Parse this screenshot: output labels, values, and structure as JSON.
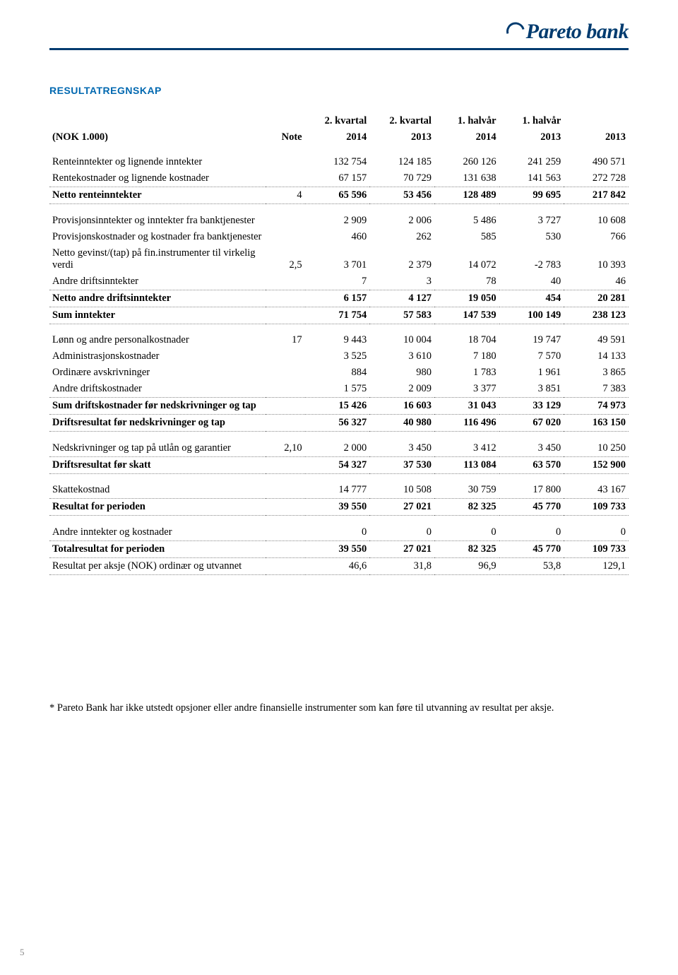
{
  "logo": "Pareto bank",
  "section_title": "RESULTATREGNSKAP",
  "header": {
    "desc": "(NOK 1.000)",
    "note": "Note",
    "c1_top": "2. kvartal",
    "c1_bot": "2014",
    "c2_top": "2. kvartal",
    "c2_bot": "2013",
    "c3_top": "1. halvår",
    "c3_bot": "2014",
    "c4_top": "1. halvår",
    "c4_bot": "2013",
    "c5_top": "",
    "c5_bot": "2013"
  },
  "rows": {
    "r1": {
      "label": "Renteinntekter og lignende inntekter",
      "note": "",
      "v": [
        "132 754",
        "124 185",
        "260 126",
        "241 259",
        "490 571"
      ]
    },
    "r2": {
      "label": "Rentekostnader og lignende kostnader",
      "note": "",
      "v": [
        "67 157",
        "70 729",
        "131 638",
        "141 563",
        "272 728"
      ]
    },
    "r3": {
      "label": "Netto renteinntekter",
      "note": "4",
      "v": [
        "65 596",
        "53 456",
        "128 489",
        "99 695",
        "217 842"
      ]
    },
    "r4": {
      "label": "Provisjonsinntekter og inntekter fra banktjenester",
      "note": "",
      "v": [
        "2 909",
        "2 006",
        "5 486",
        "3 727",
        "10 608"
      ]
    },
    "r5": {
      "label": "Provisjonskostnader og kostnader fra banktjenester",
      "note": "",
      "v": [
        "460",
        "262",
        "585",
        "530",
        "766"
      ]
    },
    "r6": {
      "label": "Netto gevinst/(tap) på fin.instrumenter til virkelig verdi",
      "note": "2,5",
      "v": [
        "3 701",
        "2 379",
        "14 072",
        "-2 783",
        "10 393"
      ]
    },
    "r7": {
      "label": "Andre driftsinntekter",
      "note": "",
      "v": [
        "7",
        "3",
        "78",
        "40",
        "46"
      ]
    },
    "r8": {
      "label": "Netto andre driftsinntekter",
      "note": "",
      "v": [
        "6 157",
        "4 127",
        "19 050",
        "454",
        "20 281"
      ]
    },
    "r9": {
      "label": "Sum inntekter",
      "note": "",
      "v": [
        "71 754",
        "57 583",
        "147 539",
        "100 149",
        "238 123"
      ]
    },
    "r10": {
      "label": "Lønn og andre personalkostnader",
      "note": "17",
      "v": [
        "9 443",
        "10 004",
        "18 704",
        "19 747",
        "49 591"
      ]
    },
    "r11": {
      "label": "Administrasjonskostnader",
      "note": "",
      "v": [
        "3 525",
        "3 610",
        "7 180",
        "7 570",
        "14 133"
      ]
    },
    "r12": {
      "label": "Ordinære avskrivninger",
      "note": "",
      "v": [
        "884",
        "980",
        "1 783",
        "1 961",
        "3 865"
      ]
    },
    "r13": {
      "label": "Andre driftskostnader",
      "note": "",
      "v": [
        "1 575",
        "2 009",
        "3 377",
        "3 851",
        "7 383"
      ]
    },
    "r14": {
      "label": "Sum driftskostnader før nedskrivninger og tap",
      "note": "",
      "v": [
        "15 426",
        "16 603",
        "31 043",
        "33 129",
        "74 973"
      ]
    },
    "r15": {
      "label": "Driftsresultat før nedskrivninger og tap",
      "note": "",
      "v": [
        "56 327",
        "40 980",
        "116 496",
        "67 020",
        "163 150"
      ]
    },
    "r16": {
      "label": "Nedskrivninger og tap på utlån og garantier",
      "note": "2,10",
      "v": [
        "2 000",
        "3 450",
        "3 412",
        "3 450",
        "10 250"
      ]
    },
    "r17": {
      "label": "Driftsresultat før skatt",
      "note": "",
      "v": [
        "54 327",
        "37 530",
        "113 084",
        "63 570",
        "152 900"
      ]
    },
    "r18": {
      "label": "Skattekostnad",
      "note": "",
      "v": [
        "14 777",
        "10 508",
        "30 759",
        "17 800",
        "43 167"
      ]
    },
    "r19": {
      "label": "Resultat for perioden",
      "note": "",
      "v": [
        "39 550",
        "27 021",
        "82 325",
        "45 770",
        "109 733"
      ]
    },
    "r20": {
      "label": "Andre inntekter og kostnader",
      "note": "",
      "v": [
        "0",
        "0",
        "0",
        "0",
        "0"
      ]
    },
    "r21": {
      "label": "Totalresultat for perioden",
      "note": "",
      "v": [
        "39 550",
        "27 021",
        "82 325",
        "45 770",
        "109 733"
      ]
    },
    "r22": {
      "label": "Resultat per aksje (NOK) ordinær og utvannet",
      "note": "",
      "v": [
        "46,6",
        "31,8",
        "96,9",
        "53,8",
        "129,1"
      ]
    }
  },
  "footnote": "* Pareto Bank har ikke utstedt opsjoner eller andre finansielle instrumenter som kan føre til utvanning av resultat per aksje.",
  "page_number": "5"
}
